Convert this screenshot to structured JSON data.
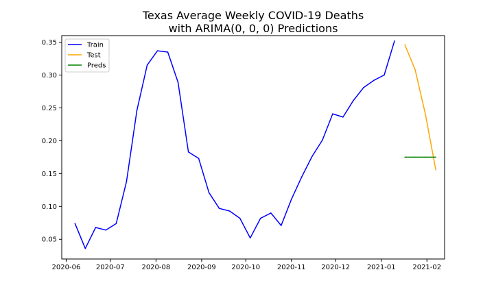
{
  "chart_data": {
    "type": "line",
    "title_lines": [
      "Texas Average Weekly COVID-19 Deaths",
      "with ARIMA(0, 0, 0) Predictions"
    ],
    "xlabel": "",
    "ylabel": "",
    "xlim": [
      "2020-05-29",
      "2021-02-13"
    ],
    "ylim": [
      0.02,
      0.36
    ],
    "x_ticks": [
      "2020-06",
      "2020-07",
      "2020-08",
      "2020-09",
      "2020-10",
      "2020-11",
      "2020-12",
      "2021-01",
      "2021-02"
    ],
    "y_ticks": [
      "0.05",
      "0.10",
      "0.15",
      "0.20",
      "0.25",
      "0.30",
      "0.35"
    ],
    "grid": false,
    "legend_position": "top-left",
    "series": [
      {
        "name": "Train",
        "color": "#0000ff",
        "x": [
          "2020-06-07",
          "2020-06-14",
          "2020-06-21",
          "2020-06-28",
          "2020-07-05",
          "2020-07-12",
          "2020-07-19",
          "2020-07-26",
          "2020-08-02",
          "2020-08-09",
          "2020-08-16",
          "2020-08-23",
          "2020-08-30",
          "2020-09-06",
          "2020-09-13",
          "2020-09-20",
          "2020-09-27",
          "2020-10-04",
          "2020-10-11",
          "2020-10-18",
          "2020-10-25",
          "2020-11-01",
          "2020-11-08",
          "2020-11-15",
          "2020-11-22",
          "2020-11-29",
          "2020-12-06",
          "2020-12-13",
          "2020-12-20",
          "2020-12-27",
          "2021-01-03",
          "2021-01-10"
        ],
        "values": [
          0.074,
          0.036,
          0.068,
          0.064,
          0.074,
          0.138,
          0.246,
          0.315,
          0.337,
          0.335,
          0.289,
          0.183,
          0.173,
          0.121,
          0.097,
          0.093,
          0.082,
          0.052,
          0.082,
          0.09,
          0.071,
          0.111,
          0.145,
          0.176,
          0.201,
          0.241,
          0.236,
          0.261,
          0.281,
          0.292,
          0.3,
          0.352
        ]
      },
      {
        "name": "Test",
        "color": "#ffa500",
        "x": [
          "2021-01-17",
          "2021-01-24",
          "2021-01-31",
          "2021-02-07"
        ],
        "values": [
          0.346,
          0.308,
          0.24,
          0.156
        ]
      },
      {
        "name": "Preds",
        "color": "#008000",
        "x": [
          "2021-01-17",
          "2021-01-24",
          "2021-01-31",
          "2021-02-07"
        ],
        "values": [
          0.175,
          0.175,
          0.175,
          0.175
        ]
      }
    ]
  }
}
